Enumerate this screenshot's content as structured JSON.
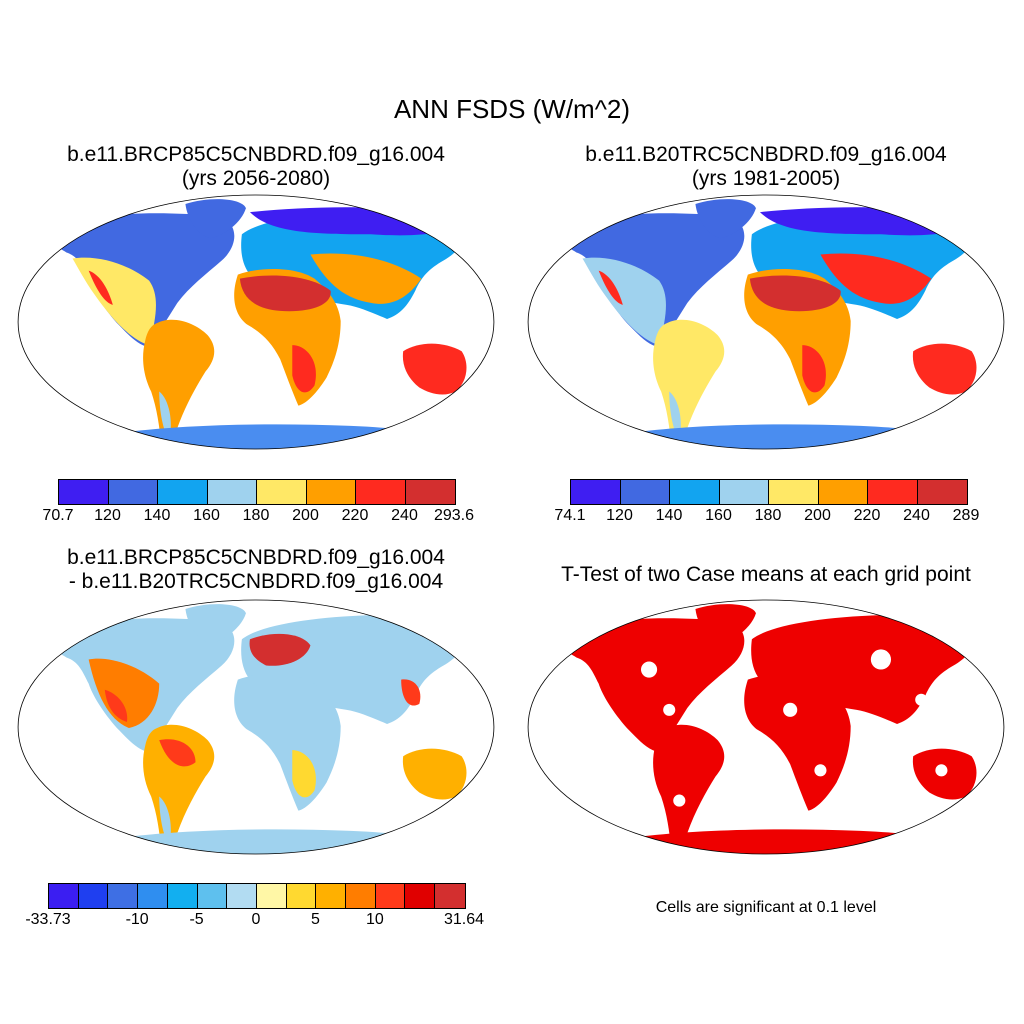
{
  "main_title": "ANN FSDS (W/m^2)",
  "panels": {
    "top_left": {
      "title_line1": "b.e11.BRCP85C5CNBDRD.f09_g16.004",
      "title_line2": "(yrs 2056-2080)",
      "colorbar_colors": [
        "#3f1ef2",
        "#4169e1",
        "#12a4f0",
        "#9fd2ee",
        "#ffe866",
        "#ff9f00",
        "#ff2a1f",
        "#d32f2f"
      ],
      "colorbar_labels": [
        "70.7",
        "120",
        "140",
        "160",
        "180",
        "200",
        "220",
        "240",
        "293.6"
      ]
    },
    "top_right": {
      "title_line1": "b.e11.B20TRC5CNBDRD.f09_g16.004",
      "title_line2": "(yrs 1981-2005)",
      "colorbar_colors": [
        "#3f1ef2",
        "#4169e1",
        "#12a4f0",
        "#9fd2ee",
        "#ffe866",
        "#ff9f00",
        "#ff2a1f",
        "#d32f2f"
      ],
      "colorbar_labels": [
        "74.1",
        "120",
        "140",
        "160",
        "180",
        "200",
        "220",
        "240",
        "289"
      ]
    },
    "bottom_left": {
      "title_line1": "b.e11.BRCP85C5CNBDRD.f09_g16.004",
      "title_line2": "- b.e11.B20TRC5CNBDRD.f09_g16.004",
      "colorbar_colors": [
        "#3b1ef2",
        "#1f3ff0",
        "#3e6fe4",
        "#2f8ef0",
        "#12aff0",
        "#5ec0ee",
        "#b2dcf2",
        "#fff7a6",
        "#ffd930",
        "#ffb000",
        "#ff7d00",
        "#ff3a1a",
        "#e00000",
        "#d32f2f"
      ],
      "colorbar_labels": [
        "-33.73",
        "-10",
        "-5",
        "0",
        "5",
        "10",
        "31.64"
      ]
    },
    "bottom_right": {
      "title": "T-Test of two Case means at each grid point",
      "note": "Cells are significant at 0.1 level",
      "fill_color": "#ee0000"
    }
  }
}
